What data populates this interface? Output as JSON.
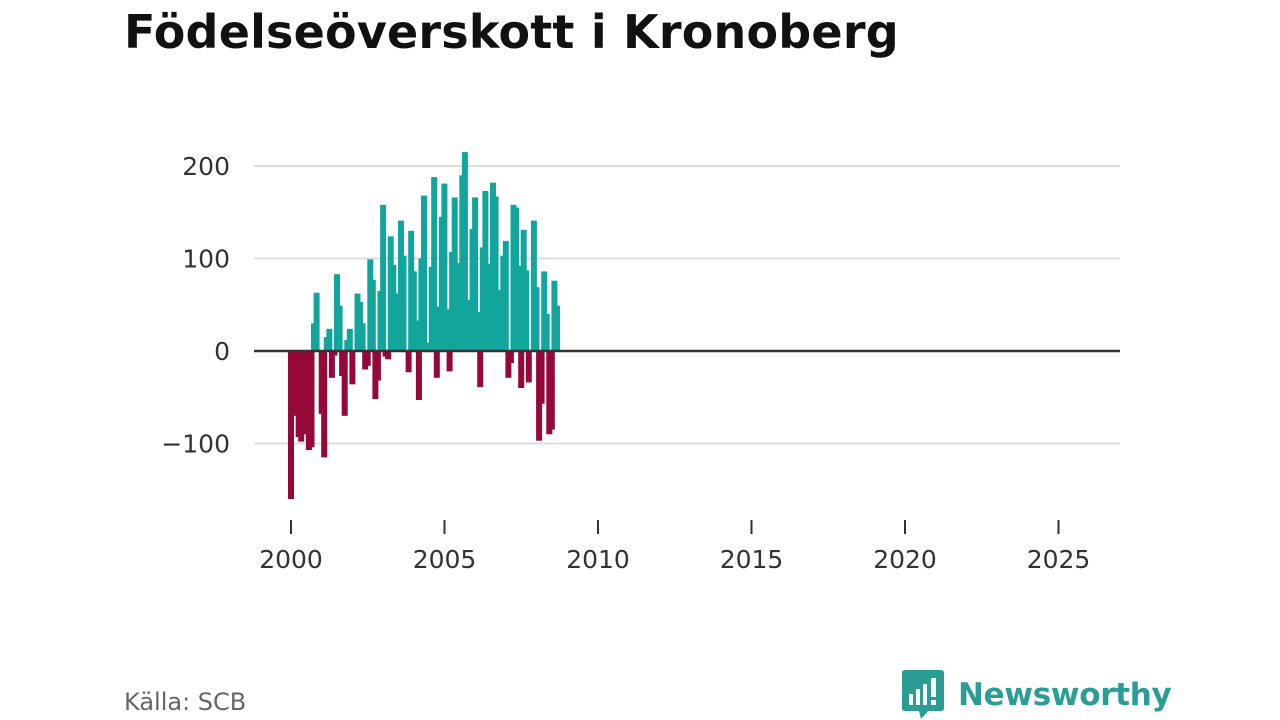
{
  "title": "Födelseöverskott i Kronoberg",
  "source": "Källa: SCB",
  "brand": {
    "name": "Newsworthy",
    "logo_icon": "bar-chart-speech-bubble-icon",
    "color": "#2a9d94"
  },
  "colors": {
    "positive": "#12a59c",
    "negative": "#950838",
    "grid": "#dddddd",
    "zero_line": "#333333",
    "text": "#333333"
  },
  "chart_data": {
    "type": "bar",
    "title": "Födelseöverskott i Kronoberg",
    "xlabel": "",
    "ylabel": "",
    "frequency": "monthly",
    "x_start": 2000.0,
    "x_step": 0.0833,
    "xlim": [
      1999.2,
      2026.8
    ],
    "ylim": [
      -165,
      225
    ],
    "x_ticks": [
      2000,
      2005,
      2010,
      2015,
      2020,
      2025
    ],
    "x_tick_labels": [
      "2000",
      "2005",
      "2010",
      "2015",
      "2020",
      "2025"
    ],
    "y_ticks": [
      200,
      100,
      0,
      -100
    ],
    "y_tick_labels": [
      "200",
      "100",
      "0",
      "−100"
    ],
    "grid": true,
    "values": [
      -160,
      -70,
      -66,
      -93,
      -98,
      -16,
      -90,
      -107,
      -104,
      30,
      63,
      0,
      -68,
      -115,
      15,
      24,
      -29,
      -5,
      83,
      49,
      -27,
      -70,
      12,
      24,
      -36,
      0,
      62,
      53,
      30,
      -20,
      -16,
      99,
      77,
      -52,
      -32,
      65,
      158,
      -6,
      -9,
      124,
      93,
      37,
      62,
      141,
      103,
      0,
      -23,
      130,
      86,
      33,
      -53,
      100,
      168,
      9,
      5,
      91,
      188,
      -29,
      48,
      145,
      181,
      45,
      -22,
      107,
      166,
      37,
      95,
      190,
      215,
      55,
      0,
      132,
      166,
      42,
      -39,
      112,
      173,
      85,
      94,
      182,
      167,
      50,
      66,
      103,
      119,
      -29,
      -13,
      158,
      155,
      92,
      -40,
      131,
      87,
      -34,
      0,
      141,
      69,
      -97,
      -57,
      86,
      40,
      -90,
      -85,
      76,
      49
    ]
  }
}
